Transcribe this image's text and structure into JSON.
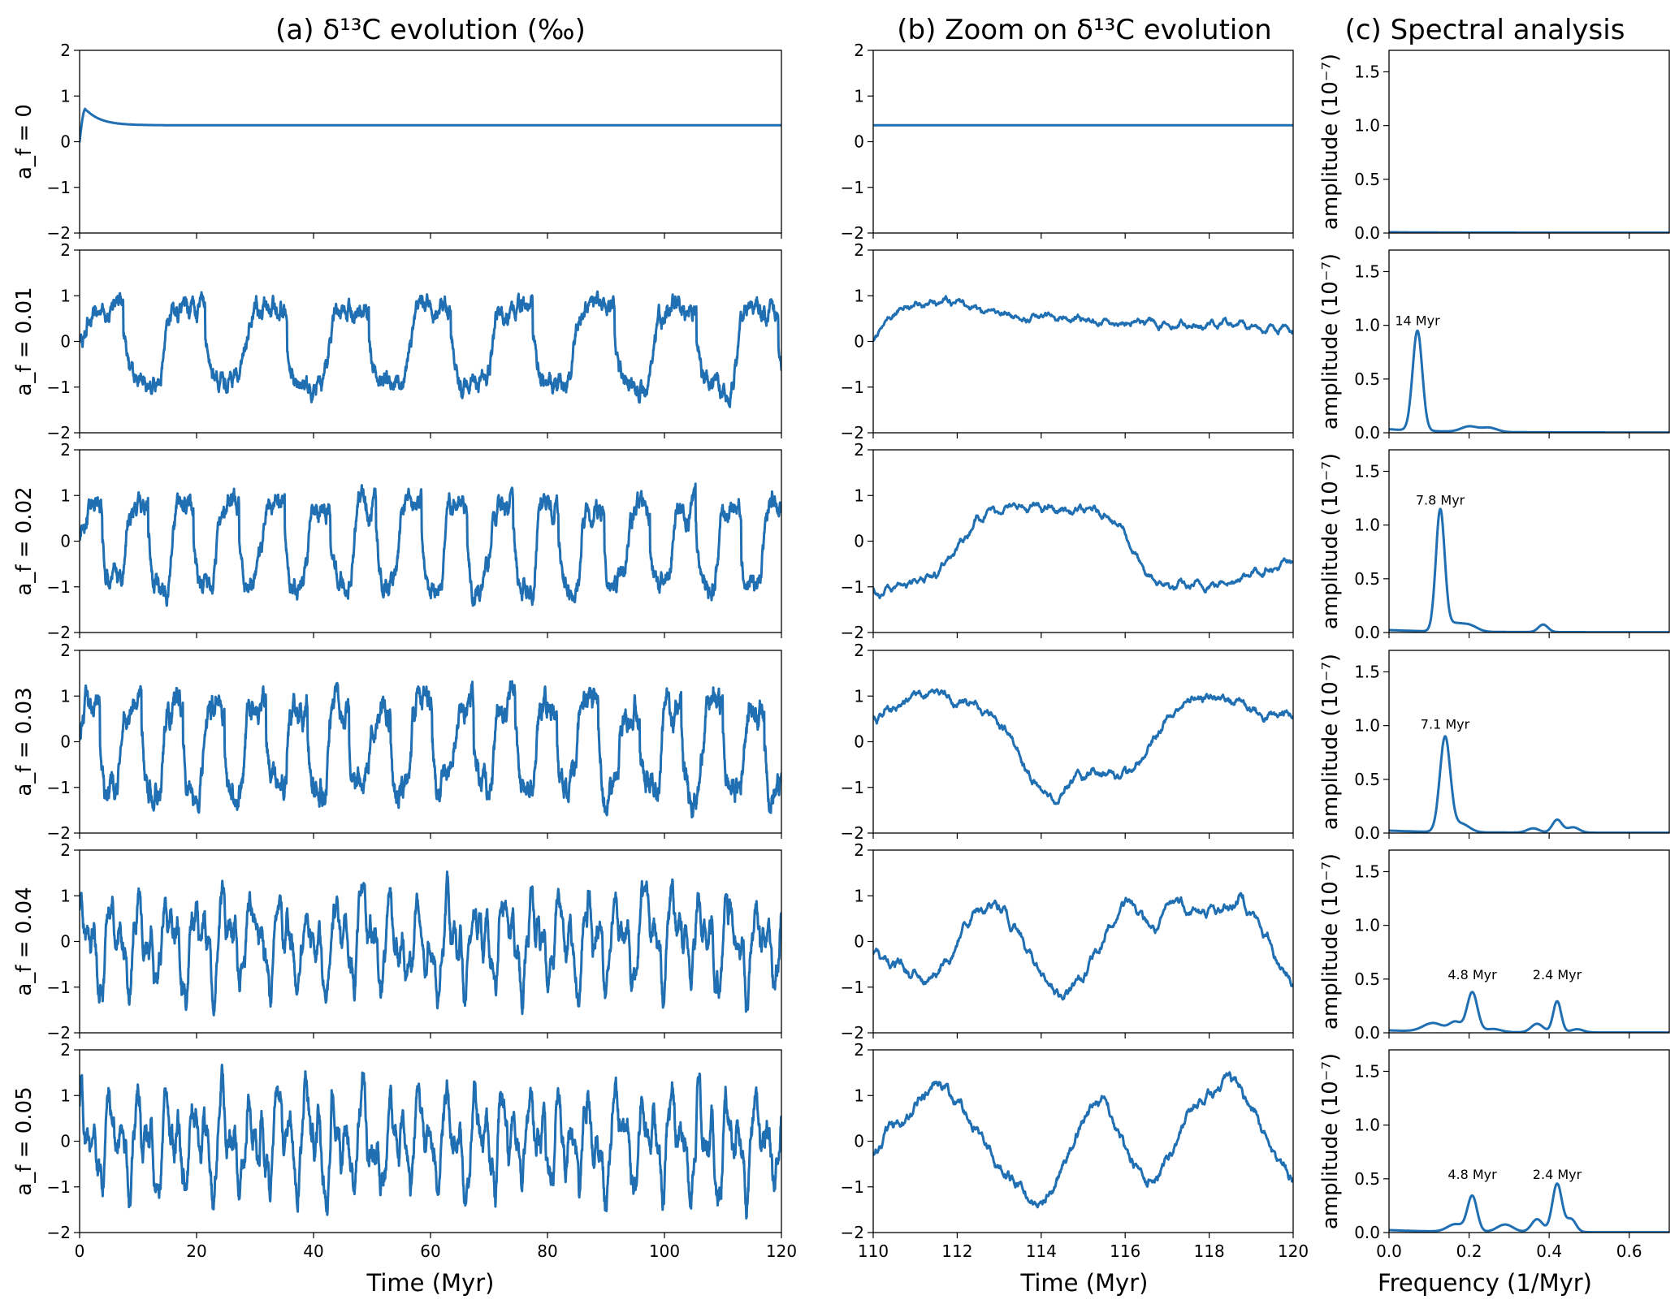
{
  "figure": {
    "columns": [
      {
        "id": "a",
        "title": "(a) δ¹³C evolution (‰)"
      },
      {
        "id": "b",
        "title": "(b) Zoom on δ¹³C evolution"
      },
      {
        "id": "c",
        "title": "(c) Spectral analysis"
      }
    ],
    "row_labels": [
      "a_f = 0",
      "a_f = 0.01",
      "a_f = 0.02",
      "a_f = 0.03",
      "a_f = 0.04",
      "a_f = 0.05"
    ],
    "xlabels": {
      "a": "Time (Myr)",
      "b": "Time (Myr)",
      "c": "Frequency (1/Myr)"
    },
    "ylabel_c": "amplitude (10⁻⁷)"
  },
  "chart_data": [
    {
      "type": "line",
      "panel": "a",
      "title": "(a) δ¹³C evolution (‰)",
      "xlabel": "Time (Myr)",
      "xlim": [
        0,
        120
      ],
      "ylim": [
        -2,
        2
      ],
      "xticks": [
        0,
        20,
        40,
        60,
        80,
        100,
        120
      ],
      "yticks": [
        -2,
        -1,
        0,
        1,
        2
      ],
      "grid": false,
      "series": [
        {
          "name": "a_f = 0",
          "waveform": "relaxation",
          "start": 0,
          "peak": 0.72,
          "peak_time": 1,
          "steady": 0.36
        },
        {
          "name": "a_f = 0.01",
          "waveform": "square",
          "period": 14,
          "high": 0.65,
          "low": -0.9,
          "noise": 0.15,
          "first_drop": 7.5
        },
        {
          "name": "a_f = 0.02",
          "waveform": "square",
          "period": 7.8,
          "high": 0.7,
          "low": -0.95,
          "noise": 0.17,
          "first_drop": 3.9
        },
        {
          "name": "a_f = 0.03",
          "waveform": "square",
          "period": 7.1,
          "high": 0.75,
          "low": -1.0,
          "noise": 0.22,
          "first_drop": 3.5
        },
        {
          "name": "a_f = 0.04",
          "waveform": "two-tone",
          "periods": [
            4.8,
            2.4
          ],
          "amplitudes": [
            0.8,
            0.55
          ],
          "noise": 0.2
        },
        {
          "name": "a_f = 0.05",
          "waveform": "two-tone",
          "periods": [
            4.8,
            2.4
          ],
          "amplitudes": [
            0.75,
            0.7
          ],
          "noise": 0.22
        }
      ]
    },
    {
      "type": "line",
      "panel": "b",
      "title": "(b) Zoom on δ¹³C evolution",
      "xlabel": "Time (Myr)",
      "xlim": [
        110,
        120
      ],
      "ylim": [
        -2,
        2
      ],
      "xticks": [
        110,
        112,
        114,
        116,
        118,
        120
      ],
      "yticks": [
        -2,
        -1,
        0,
        1,
        2
      ],
      "grid": false,
      "series": [
        {
          "name": "a_f = 0",
          "shape": [
            [
              110,
              0.36
            ],
            [
              120,
              0.36
            ]
          ]
        },
        {
          "name": "a_f = 0.01",
          "shape": [
            [
              110,
              0.0
            ],
            [
              110.3,
              0.5
            ],
            [
              110.8,
              0.8
            ],
            [
              111.6,
              0.9
            ],
            [
              112.5,
              0.72
            ],
            [
              113.5,
              0.55
            ],
            [
              114.5,
              0.5
            ],
            [
              115.5,
              0.45
            ],
            [
              116.5,
              0.42
            ],
            [
              117.5,
              0.4
            ],
            [
              118.5,
              0.38
            ],
            [
              119.3,
              0.3
            ],
            [
              120,
              0.3
            ]
          ]
        },
        {
          "name": "a_f = 0.02",
          "shape": [
            [
              110,
              -1.1
            ],
            [
              110.8,
              -0.95
            ],
            [
              111.5,
              -0.7
            ],
            [
              112.0,
              -0.2
            ],
            [
              112.5,
              0.6
            ],
            [
              113.2,
              0.75
            ],
            [
              114.0,
              0.7
            ],
            [
              115.0,
              0.65
            ],
            [
              115.6,
              0.6
            ],
            [
              116.0,
              0.2
            ],
            [
              116.5,
              -0.8
            ],
            [
              117.0,
              -1.0
            ],
            [
              117.8,
              -1.0
            ],
            [
              118.5,
              -0.85
            ],
            [
              119.2,
              -0.6
            ],
            [
              120,
              -0.5
            ]
          ]
        },
        {
          "name": "a_f = 0.03",
          "shape": [
            [
              110,
              0.5
            ],
            [
              110.7,
              0.85
            ],
            [
              111.5,
              1.1
            ],
            [
              112.0,
              0.9
            ],
            [
              112.8,
              0.6
            ],
            [
              113.3,
              0.0
            ],
            [
              113.8,
              -0.9
            ],
            [
              114.3,
              -1.3
            ],
            [
              114.8,
              -0.8
            ],
            [
              115.3,
              -0.6
            ],
            [
              115.9,
              -0.9
            ],
            [
              116.3,
              -0.5
            ],
            [
              116.9,
              0.4
            ],
            [
              117.5,
              0.9
            ],
            [
              118.2,
              1.0
            ],
            [
              118.8,
              0.9
            ],
            [
              119.3,
              0.55
            ],
            [
              120,
              0.6
            ]
          ]
        },
        {
          "name": "a_f = 0.04",
          "shape": [
            [
              110,
              -0.3
            ],
            [
              110.6,
              -0.5
            ],
            [
              111.2,
              -0.9
            ],
            [
              111.8,
              -0.4
            ],
            [
              112.3,
              0.6
            ],
            [
              112.9,
              0.9
            ],
            [
              113.4,
              0.3
            ],
            [
              113.9,
              -0.6
            ],
            [
              114.5,
              -1.2
            ],
            [
              115.0,
              -0.8
            ],
            [
              115.6,
              0.3
            ],
            [
              116.1,
              0.9
            ],
            [
              116.7,
              0.2
            ],
            [
              117.2,
              0.9
            ],
            [
              117.8,
              0.6
            ],
            [
              118.4,
              0.7
            ],
            [
              118.8,
              1.0
            ],
            [
              119.3,
              0.2
            ],
            [
              119.7,
              -0.5
            ],
            [
              120,
              -0.8
            ]
          ]
        },
        {
          "name": "a_f = 0.05",
          "shape": [
            [
              110,
              -0.3
            ],
            [
              110.5,
              0.4
            ],
            [
              111.0,
              0.8
            ],
            [
              111.5,
              1.4
            ],
            [
              112.0,
              0.9
            ],
            [
              112.5,
              0.2
            ],
            [
              113.0,
              -0.5
            ],
            [
              113.5,
              -1.0
            ],
            [
              114.0,
              -1.5
            ],
            [
              114.5,
              -0.6
            ],
            [
              115.0,
              0.4
            ],
            [
              115.5,
              1.0
            ],
            [
              116.0,
              -0.2
            ],
            [
              116.5,
              -1.0
            ],
            [
              117.0,
              -0.4
            ],
            [
              117.5,
              0.6
            ],
            [
              118.0,
              1.0
            ],
            [
              118.6,
              1.3
            ],
            [
              119.1,
              0.6
            ],
            [
              119.6,
              -0.4
            ],
            [
              120,
              -0.8
            ]
          ]
        }
      ]
    },
    {
      "type": "line",
      "panel": "c",
      "title": "(c) Spectral analysis",
      "xlabel": "Frequency (1/Myr)",
      "ylabel": "amplitude (10⁻⁷)",
      "xlim": [
        0,
        0.7
      ],
      "ylim": [
        0,
        1.7
      ],
      "xticks": [
        "0.0",
        "0.2",
        "0.4",
        "0.6"
      ],
      "yticks": [
        "0.0",
        "0.5",
        "1.0",
        "1.5"
      ],
      "grid": false,
      "series": [
        {
          "name": "a_f = 0",
          "peaks": [],
          "baseline": 0.005,
          "annotations": []
        },
        {
          "name": "a_f = 0.01",
          "baseline": 0.03,
          "peaks": [
            [
              0.071,
              0.93,
              0.012
            ],
            [
              0.2,
              0.05,
              0.02
            ],
            [
              0.25,
              0.04,
              0.02
            ]
          ],
          "annotations": [
            {
              "text": "14 Myr",
              "x": 0.071,
              "y": 1.0
            }
          ]
        },
        {
          "name": "a_f = 0.02",
          "baseline": 0.02,
          "peaks": [
            [
              0.128,
              1.12,
              0.011
            ],
            [
              0.16,
              0.07,
              0.02
            ],
            [
              0.2,
              0.06,
              0.02
            ],
            [
              0.385,
              0.07,
              0.012
            ]
          ],
          "annotations": [
            {
              "text": "7.8 Myr",
              "x": 0.128,
              "y": 1.19
            }
          ]
        },
        {
          "name": "a_f = 0.03",
          "baseline": 0.02,
          "peaks": [
            [
              0.14,
              0.88,
              0.013
            ],
            [
              0.18,
              0.08,
              0.02
            ],
            [
              0.36,
              0.04,
              0.015
            ],
            [
              0.42,
              0.12,
              0.012
            ],
            [
              0.46,
              0.05,
              0.015
            ]
          ],
          "annotations": [
            {
              "text": "7.1 Myr",
              "x": 0.14,
              "y": 0.97
            }
          ]
        },
        {
          "name": "a_f = 0.04",
          "baseline": 0.02,
          "peaks": [
            [
              0.11,
              0.08,
              0.025
            ],
            [
              0.166,
              0.09,
              0.015
            ],
            [
              0.208,
              0.37,
              0.013
            ],
            [
              0.26,
              0.03,
              0.02
            ],
            [
              0.37,
              0.08,
              0.015
            ],
            [
              0.42,
              0.29,
              0.01
            ],
            [
              0.47,
              0.03,
              0.015
            ]
          ],
          "annotations": [
            {
              "text": "4.8 Myr",
              "x": 0.208,
              "y": 0.5
            },
            {
              "text": "2.4 Myr",
              "x": 0.42,
              "y": 0.5
            }
          ]
        },
        {
          "name": "a_f = 0.05",
          "baseline": 0.02,
          "peaks": [
            [
              0.166,
              0.07,
              0.02
            ],
            [
              0.208,
              0.33,
              0.012
            ],
            [
              0.29,
              0.07,
              0.02
            ],
            [
              0.37,
              0.12,
              0.014
            ],
            [
              0.42,
              0.45,
              0.012
            ],
            [
              0.455,
              0.12,
              0.012
            ]
          ],
          "annotations": [
            {
              "text": "4.8 Myr",
              "x": 0.208,
              "y": 0.5
            },
            {
              "text": "2.4 Myr",
              "x": 0.42,
              "y": 0.5
            }
          ]
        }
      ]
    }
  ]
}
